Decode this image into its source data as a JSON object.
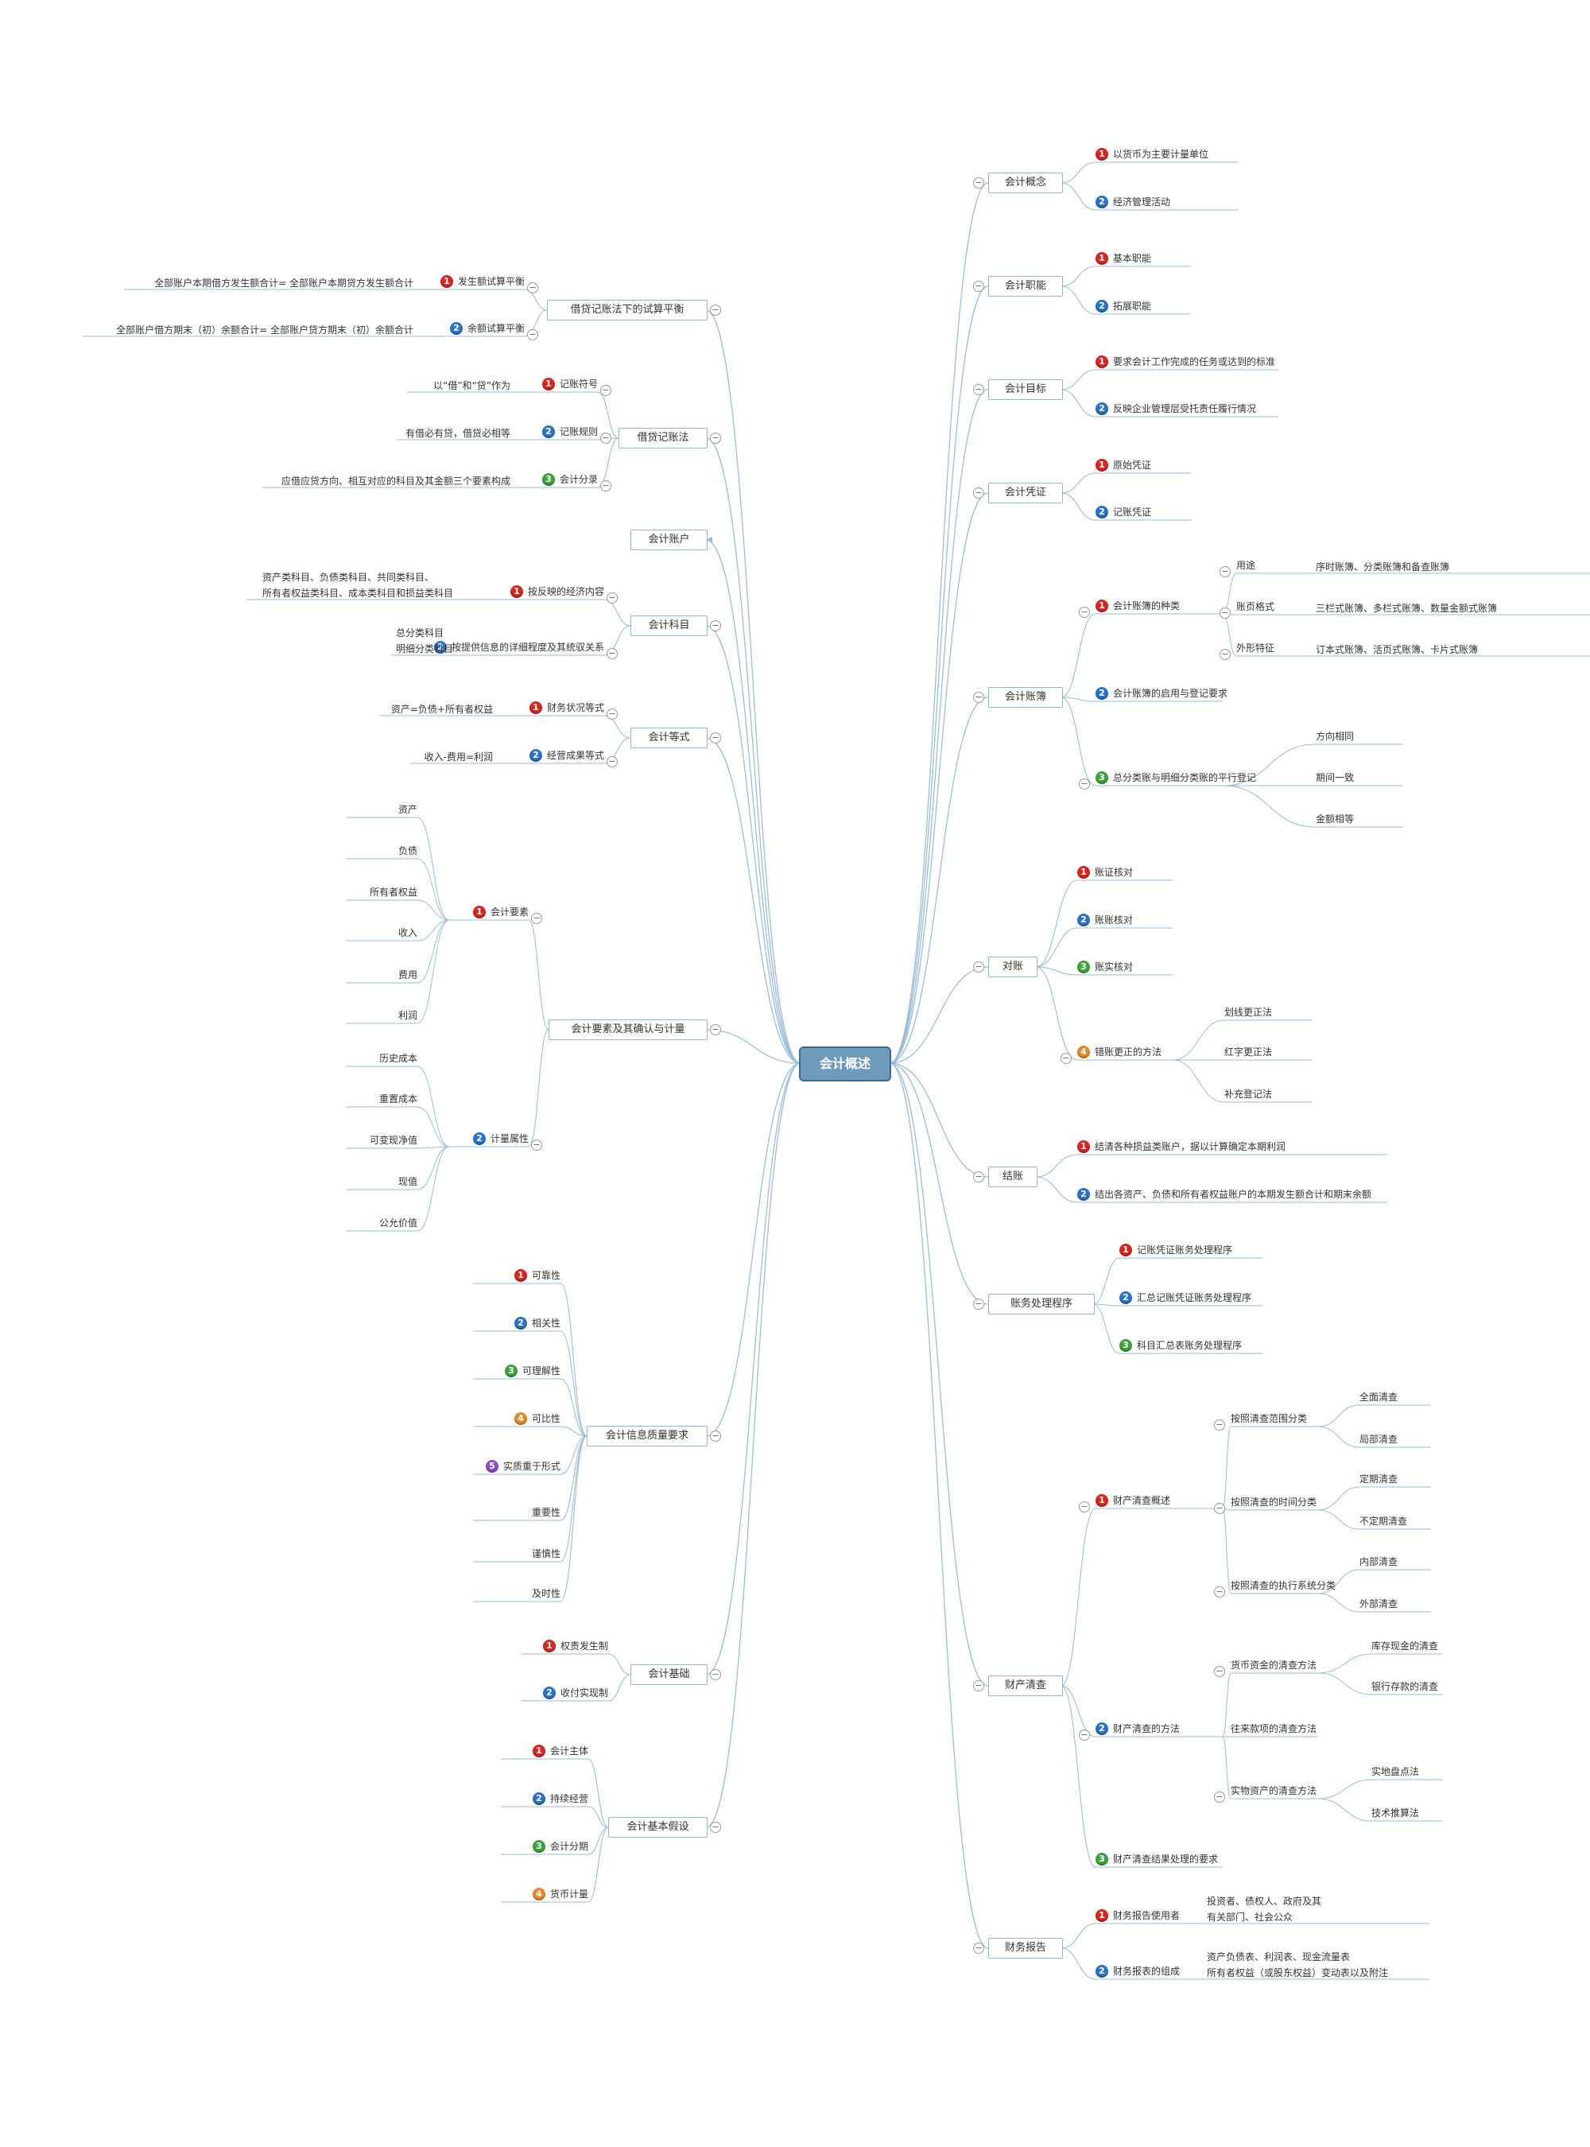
{
  "badge_colors": {
    "1": "#d9251d",
    "2": "#2a72c9",
    "3": "#3ca23a",
    "4": "#e48a25",
    "5": "#8a4fc4"
  },
  "line_color": "#9cbcd6",
  "central": {
    "label": "会计概述"
  },
  "main": [
    {
      "label": "会计概念",
      "children": [
        {
          "n": 1,
          "label": "以货币为主要计量单位"
        },
        {
          "n": 2,
          "label": "经济管理活动"
        }
      ]
    },
    {
      "label": "会计职能",
      "children": [
        {
          "n": 1,
          "label": "基本职能"
        },
        {
          "n": 2,
          "label": "拓展职能"
        }
      ]
    },
    {
      "label": "会计目标",
      "children": [
        {
          "n": 1,
          "label": "要求会计工作完成的任务或达到的标准"
        },
        {
          "n": 2,
          "label": "反映企业管理层受托责任履行情况"
        }
      ]
    },
    {
      "label": "会计凭证",
      "children": [
        {
          "n": 1,
          "label": "原始凭证"
        },
        {
          "n": 2,
          "label": "记账凭证"
        }
      ]
    },
    {
      "label": "会计账簿",
      "children": [
        {
          "n": 1,
          "label": "会计账簿的种类",
          "children": [
            {
              "label": "用途",
              "detail": "序时账簿、分类账簿和备查账簿"
            },
            {
              "label": "账页格式",
              "detail": "三栏式账簿、多栏式账簿、数量金额式账簿"
            },
            {
              "label": "外形特征",
              "detail": "订本式账簿、活页式账簿、卡片式账簿"
            }
          ]
        },
        {
          "n": 2,
          "label": "会计账簿的启用与登记要求"
        },
        {
          "n": 3,
          "label": "总分类账与明细分类账的平行登记",
          "children": [
            {
              "label": "方向相同"
            },
            {
              "label": "期间一致"
            },
            {
              "label": "金额相等"
            }
          ]
        }
      ]
    },
    {
      "label": "对账",
      "children": [
        {
          "n": 1,
          "label": "账证核对"
        },
        {
          "n": 2,
          "label": "账账核对"
        },
        {
          "n": 3,
          "label": "账实核对"
        },
        {
          "n": 4,
          "label": "错账更正的方法",
          "children": [
            {
              "label": "划线更正法"
            },
            {
              "label": "红字更正法"
            },
            {
              "label": "补充登记法"
            }
          ]
        }
      ]
    },
    {
      "label": "结账",
      "children": [
        {
          "n": 1,
          "label": "结清各种损益类账户，据以计算确定本期利润"
        },
        {
          "n": 2,
          "label": "结出各资产、负债和所有者权益账户的本期发生额合计和期末余额"
        }
      ]
    },
    {
      "label": "账务处理程序",
      "children": [
        {
          "n": 1,
          "label": "记账凭证账务处理程序"
        },
        {
          "n": 2,
          "label": "汇总记账凭证账务处理程序"
        },
        {
          "n": 3,
          "label": "科目汇总表账务处理程序"
        }
      ]
    },
    {
      "label": "财产清查",
      "children": [
        {
          "n": 1,
          "label": "财产清查概述",
          "children": [
            {
              "label": "按照清查范围分类",
              "children": [
                {
                  "label": "全面清查"
                },
                {
                  "label": "局部清查"
                }
              ]
            },
            {
              "label": "按照清查的时间分类",
              "children": [
                {
                  "label": "定期清查"
                },
                {
                  "label": "不定期清查"
                }
              ]
            },
            {
              "label": "按照清查的执行系统分类",
              "children": [
                {
                  "label": "内部清查"
                },
                {
                  "label": "外部清查"
                }
              ]
            }
          ]
        },
        {
          "n": 2,
          "label": "财产清查的方法",
          "children": [
            {
              "label": "货币资金的清查方法",
              "children": [
                {
                  "label": "库存现金的清查"
                },
                {
                  "label": "银行存款的清查"
                }
              ]
            },
            {
              "label": "往来款项的清查方法"
            },
            {
              "label": "实物资产的清查方法",
              "children": [
                {
                  "label": "实地盘点法"
                },
                {
                  "label": "技术推算法"
                }
              ]
            }
          ]
        },
        {
          "n": 3,
          "label": "财产清查结果处理的要求"
        }
      ]
    },
    {
      "label": "财务报告",
      "children": [
        {
          "n": 1,
          "label": "财务报告使用者",
          "detail": "投资者、债权人、政府及其\n有关部门、社会公众"
        },
        {
          "n": 2,
          "label": "财务报表的组成",
          "detail": "资产负债表、利润表、现金流量表\n所有者权益（或股东权益）变动表以及附注"
        }
      ]
    },
    {
      "label": "借贷记账法下的试算平衡",
      "children": [
        {
          "n": 1,
          "label": "发生额试算平衡",
          "detail": "全部账户本期借方发生额合计= 全部账户本期贷方发生额合计"
        },
        {
          "n": 2,
          "label": "余额试算平衡",
          "detail": "全部账户借方期末（初）余额合计= 全部账户贷方期末（初）余额合计"
        }
      ]
    },
    {
      "label": "借贷记账法",
      "children": [
        {
          "n": 1,
          "label": "记账符号",
          "detail": "以“借”和“贷”作为"
        },
        {
          "n": 2,
          "label": "记账规则",
          "detail": "有借必有贷，借贷必相等"
        },
        {
          "n": 3,
          "label": "会计分录",
          "detail": "应借应贷方向、相互对应的科目及其金额三个要素构成"
        }
      ]
    },
    {
      "label": "会计账户"
    },
    {
      "label": "会计科目",
      "children": [
        {
          "n": 1,
          "label": "按反映的经济内容",
          "detail": "资产类科目、负债类科目、共同类科目、\n所有者权益类科目、成本类科目和损益类科目"
        },
        {
          "n": 2,
          "label": "按提供信息的详细程度及其统驭关系",
          "detail": "总分类科目\n明细分类科目"
        }
      ]
    },
    {
      "label": "会计等式",
      "children": [
        {
          "n": 1,
          "label": "财务状况等式",
          "detail": "资产=负债+所有者权益"
        },
        {
          "n": 2,
          "label": "经营成果等式",
          "detail": "收入-费用=利润"
        }
      ]
    },
    {
      "label": "会计要素及其确认与计量",
      "children": [
        {
          "n": 1,
          "label": "会计要素",
          "children": [
            {
              "label": "资产"
            },
            {
              "label": "负债"
            },
            {
              "label": "所有者权益"
            },
            {
              "label": "收入"
            },
            {
              "label": "费用"
            },
            {
              "label": "利润"
            }
          ]
        },
        {
          "n": 2,
          "label": "计量属性",
          "children": [
            {
              "label": "历史成本"
            },
            {
              "label": "重置成本"
            },
            {
              "label": "可变现净值"
            },
            {
              "label": "现值"
            },
            {
              "label": "公允价值"
            }
          ]
        }
      ]
    },
    {
      "label": "会计信息质量要求",
      "children": [
        {
          "n": 1,
          "label": "可靠性"
        },
        {
          "n": 2,
          "label": "相关性"
        },
        {
          "n": 3,
          "label": "可理解性"
        },
        {
          "n": 4,
          "label": "可比性"
        },
        {
          "n": 5,
          "label": "实质重于形式"
        },
        {
          "label": "重要性"
        },
        {
          "label": "谨慎性"
        },
        {
          "label": "及时性"
        }
      ]
    },
    {
      "label": "会计基础",
      "children": [
        {
          "n": 1,
          "label": "权责发生制"
        },
        {
          "n": 2,
          "label": "收付实现制"
        }
      ]
    },
    {
      "label": "会计基本假设",
      "children": [
        {
          "n": 1,
          "label": "会计主体"
        },
        {
          "n": 2,
          "label": "持续经营"
        },
        {
          "n": 3,
          "label": "会计分期"
        },
        {
          "n": 4,
          "label": "货币计量"
        }
      ]
    }
  ]
}
